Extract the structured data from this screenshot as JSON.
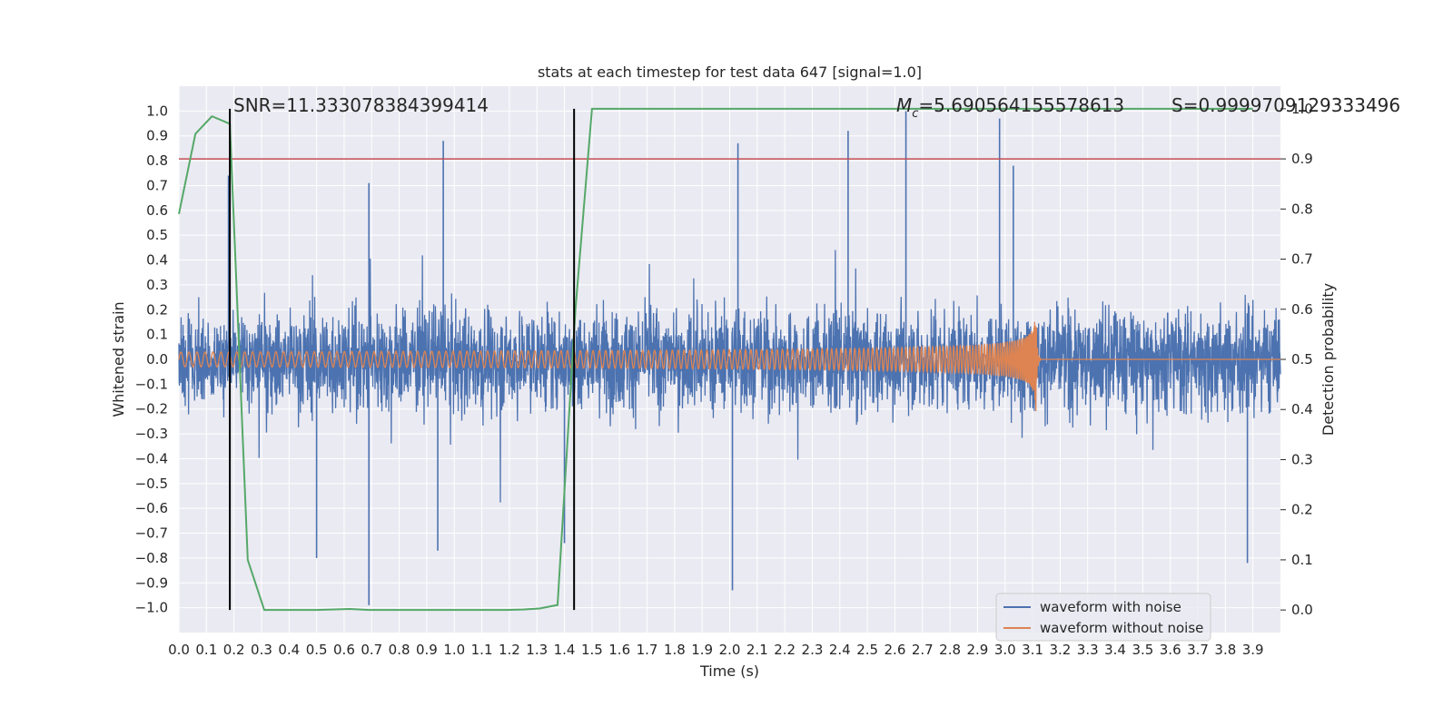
{
  "chart_data": {
    "type": "line",
    "title": "stats at each timestep for test data 647 [signal=1.0]",
    "xlabel": "Time (s)",
    "ylabel": "Whitened strain",
    "y2label": "Detection probability",
    "xlim": [
      0.0,
      4.0
    ],
    "ylim": [
      -1.1,
      1.1
    ],
    "y2lim": [
      -0.045,
      1.045
    ],
    "x_ticks": [
      "0.0",
      "0.1",
      "0.2",
      "0.3",
      "0.4",
      "0.5",
      "0.6",
      "0.7",
      "0.8",
      "0.9",
      "1.0",
      "1.1",
      "1.2",
      "1.3",
      "1.4",
      "1.5",
      "1.6",
      "1.7",
      "1.8",
      "1.9",
      "2.0",
      "2.1",
      "2.2",
      "2.3",
      "2.4",
      "2.5",
      "2.6",
      "2.7",
      "2.8",
      "2.9",
      "3.0",
      "3.1",
      "3.2",
      "3.3",
      "3.4",
      "3.5",
      "3.6",
      "3.7",
      "3.8",
      "3.9"
    ],
    "y_ticks": [
      "1.0",
      "0.9",
      "0.8",
      "0.7",
      "0.6",
      "0.5",
      "0.4",
      "0.3",
      "0.2",
      "0.1",
      "0.0",
      "−0.1",
      "−0.2",
      "−0.3",
      "−0.4",
      "−0.5",
      "−0.6",
      "−0.7",
      "−0.8",
      "−0.9",
      "−1.0"
    ],
    "y2_ticks": [
      "1.0",
      "0.9",
      "0.8",
      "0.7",
      "0.6",
      "0.5",
      "0.4",
      "0.3",
      "0.2",
      "0.1",
      "0.0"
    ],
    "annotations": {
      "snr": "SNR=11.333078384399414",
      "mc_symbol": "M",
      "mc_sub": "c",
      "mc_value": "=5.690564155578613",
      "s": "S=0.9999709129333496"
    },
    "threshold": {
      "y2": 0.9,
      "color": "#c44e52"
    },
    "vertical_lines": [
      0.185,
      1.435
    ],
    "series": [
      {
        "name": "waveform with noise",
        "color": "#4c72b0",
        "axis": "left",
        "description": "noisy whitened strain, roughly ±0.3 with spikes up to ±1.0",
        "spikes": [
          [
            0.18,
            0.74
          ],
          [
            0.69,
            -0.99
          ],
          [
            0.69,
            0.71
          ],
          [
            0.96,
            0.88
          ],
          [
            2.03,
            0.87
          ],
          [
            2.01,
            -0.93
          ],
          [
            2.43,
            0.92
          ],
          [
            2.64,
            1.0
          ],
          [
            2.98,
            0.97
          ],
          [
            3.03,
            0.78
          ],
          [
            3.88,
            -0.82
          ],
          [
            1.4,
            -0.74
          ],
          [
            0.5,
            -0.8
          ],
          [
            0.94,
            -0.77
          ]
        ]
      },
      {
        "name": "waveform without noise",
        "color": "#dd8452",
        "axis": "left",
        "description": "chirp signal growing in amplitude and frequency, merging at ~3.11 s",
        "merger_time": 3.11,
        "peak_amplitude": 0.34
      },
      {
        "name": "detection probability",
        "color": "#55a868",
        "axis": "right",
        "x": [
          0.0,
          0.06,
          0.12,
          0.185,
          0.25,
          0.31,
          0.38,
          0.5,
          0.62,
          0.69,
          0.81,
          0.94,
          1.06,
          1.19,
          1.25,
          1.31,
          1.375,
          1.44,
          1.5,
          1.56,
          1.69,
          2.0,
          2.5,
          3.0,
          3.5,
          3.9
        ],
        "y": [
          0.79,
          0.95,
          0.985,
          0.97,
          0.1,
          0.0,
          0.0,
          0.0,
          0.002,
          0.0,
          0.0,
          0.0,
          0.0,
          0.0,
          0.001,
          0.003,
          0.01,
          0.6,
          1.0,
          1.0,
          1.0,
          1.0,
          1.0,
          1.0,
          1.0,
          1.0
        ]
      }
    ],
    "legend": {
      "position": "bottom-right",
      "entries": [
        "waveform with noise",
        "waveform without noise"
      ]
    }
  }
}
